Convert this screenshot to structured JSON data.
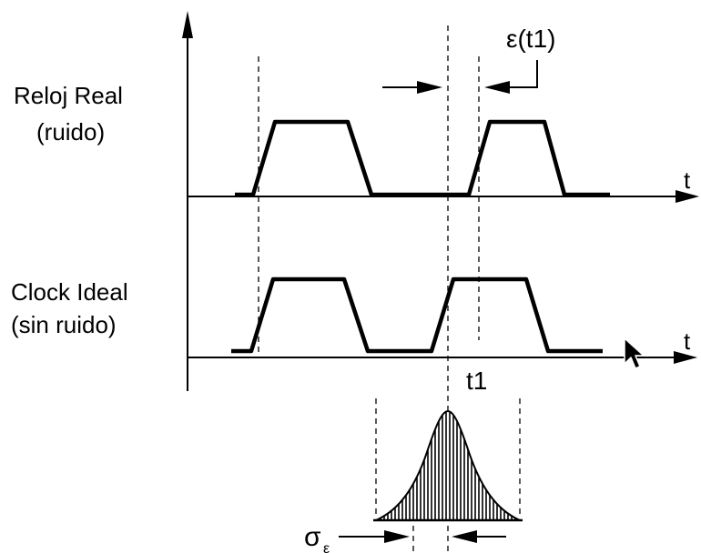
{
  "labels": {
    "real_line1": "Reloj Real",
    "real_line2": "(ruido)",
    "ideal_line1": "Clock Ideal",
    "ideal_line2": "(sin ruido)",
    "time_axis_top": "t",
    "time_axis_bottom": "t",
    "t1": "t1",
    "epsilon": "ε(t1)",
    "sigma": "σ",
    "sigma_sub": "ε"
  },
  "colors": {
    "stroke": "#000000",
    "background": "#ffffff"
  },
  "icons": {
    "cursor": "mouse-pointer-icon"
  }
}
